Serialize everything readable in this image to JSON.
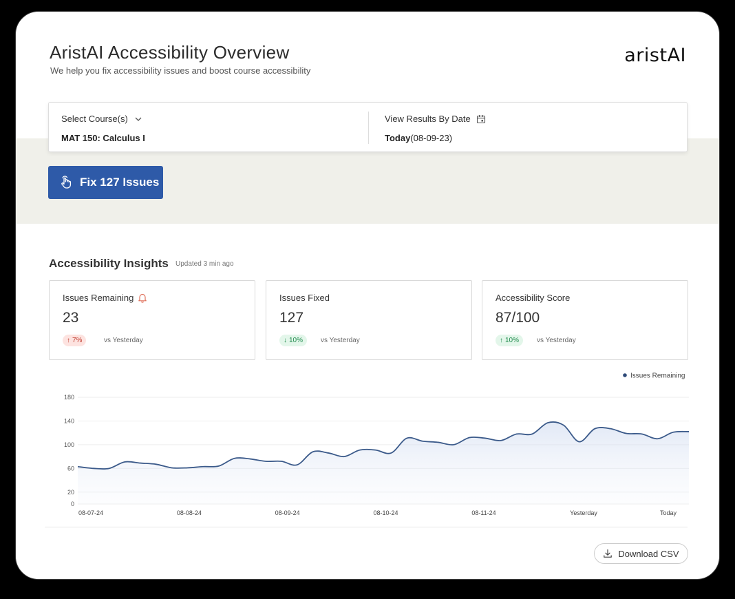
{
  "header": {
    "title": "AristAI Accessibility Overview",
    "subtitle": "We help you fix accessibility issues and boost course accessibility",
    "logo_text": "aristAI"
  },
  "filters": {
    "course_label": "Select Course(s)",
    "course_value": "MAT 150: Calculus I",
    "date_label": "View Results By Date",
    "date_value_bold": "Today",
    "date_value_rest": "(08-09-23)"
  },
  "actions": {
    "fix_label": "Fix 127 Issues",
    "csv_label": "Download CSV"
  },
  "insights": {
    "title": "Accessibility Insights",
    "updated": "Updated 3 min ago",
    "cards": [
      {
        "label": "Issues Remaining",
        "value": "23",
        "delta": "7%",
        "direction": "up",
        "tone": "red",
        "vs": "vs Yesterday"
      },
      {
        "label": "Issues Fixed",
        "value": "127",
        "delta": "10%",
        "direction": "down",
        "tone": "green",
        "vs": "vs Yesterday"
      },
      {
        "label": "Accessibility Score",
        "value": "87/100",
        "delta": "10%",
        "direction": "up",
        "tone": "green",
        "vs": "vs Yesterday"
      }
    ]
  },
  "colors": {
    "accent": "#2e5aa8",
    "line": "#3b5a8a",
    "bell": "#e0735e"
  },
  "chart_data": {
    "type": "area",
    "series": [
      {
        "name": "Issues Remaining",
        "values": [
          63,
          60,
          60,
          71,
          69,
          67,
          61,
          61,
          63,
          64,
          77,
          76,
          72,
          72,
          66,
          88,
          86,
          80,
          91,
          91,
          86,
          111,
          106,
          104,
          100,
          112,
          111,
          107,
          118,
          118,
          137,
          133,
          105,
          127,
          127,
          119,
          118,
          110,
          121,
          122
        ]
      }
    ],
    "x_tick_labels": [
      "08-07-24",
      "08-08-24",
      "08-09-24",
      "08-10-24",
      "08-11-24",
      "Yesterday",
      "Today"
    ],
    "y_ticks": [
      0,
      20,
      60,
      100,
      140,
      180
    ],
    "ylim": [
      0,
      180
    ],
    "legend": "top-right",
    "grid": true
  }
}
